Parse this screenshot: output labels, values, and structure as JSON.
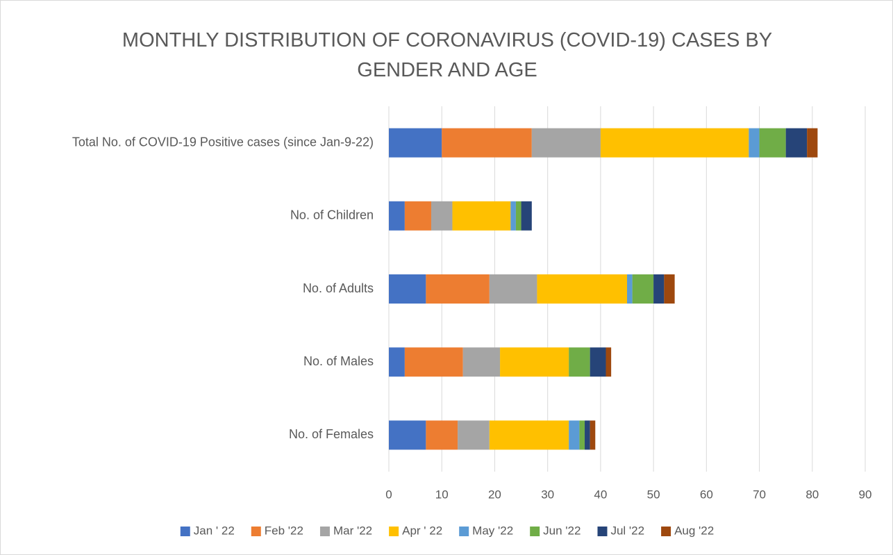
{
  "chart_data": {
    "type": "stacked_barh",
    "title": "MONTHLY DISTRIBUTION OF CORONAVIRUS (COVID-19) CASES BY GENDER AND AGE",
    "categories": [
      "Total No. of COVID-19 Positive cases (since Jan-9-22)",
      "No. of Children",
      "No. of Adults",
      "No. of Males",
      "No. of Females"
    ],
    "series": [
      {
        "name": "Jan ' 22",
        "color": "#4472c4",
        "values": [
          10,
          3,
          7,
          3,
          7
        ]
      },
      {
        "name": "Feb '22",
        "color": "#ed7d31",
        "values": [
          17,
          5,
          12,
          11,
          6
        ]
      },
      {
        "name": "Mar '22",
        "color": "#a5a5a5",
        "values": [
          13,
          4,
          9,
          7,
          6
        ]
      },
      {
        "name": "Apr ' 22",
        "color": "#ffc000",
        "values": [
          28,
          11,
          17,
          13,
          15
        ]
      },
      {
        "name": "May '22",
        "color": "#5b9bd5",
        "values": [
          2,
          1,
          1,
          0,
          2
        ]
      },
      {
        "name": "Jun '22",
        "color": "#70ad47",
        "values": [
          5,
          1,
          4,
          4,
          1
        ]
      },
      {
        "name": "Jul '22",
        "color": "#264478",
        "values": [
          4,
          2,
          2,
          3,
          1
        ]
      },
      {
        "name": "Aug '22",
        "color": "#9e480e",
        "values": [
          2,
          0,
          2,
          1,
          1
        ]
      }
    ],
    "xlim": [
      0,
      90
    ],
    "xticks": [
      0,
      10,
      20,
      30,
      40,
      50,
      60,
      70,
      80,
      90
    ],
    "grid": true,
    "legend": "bottom"
  }
}
